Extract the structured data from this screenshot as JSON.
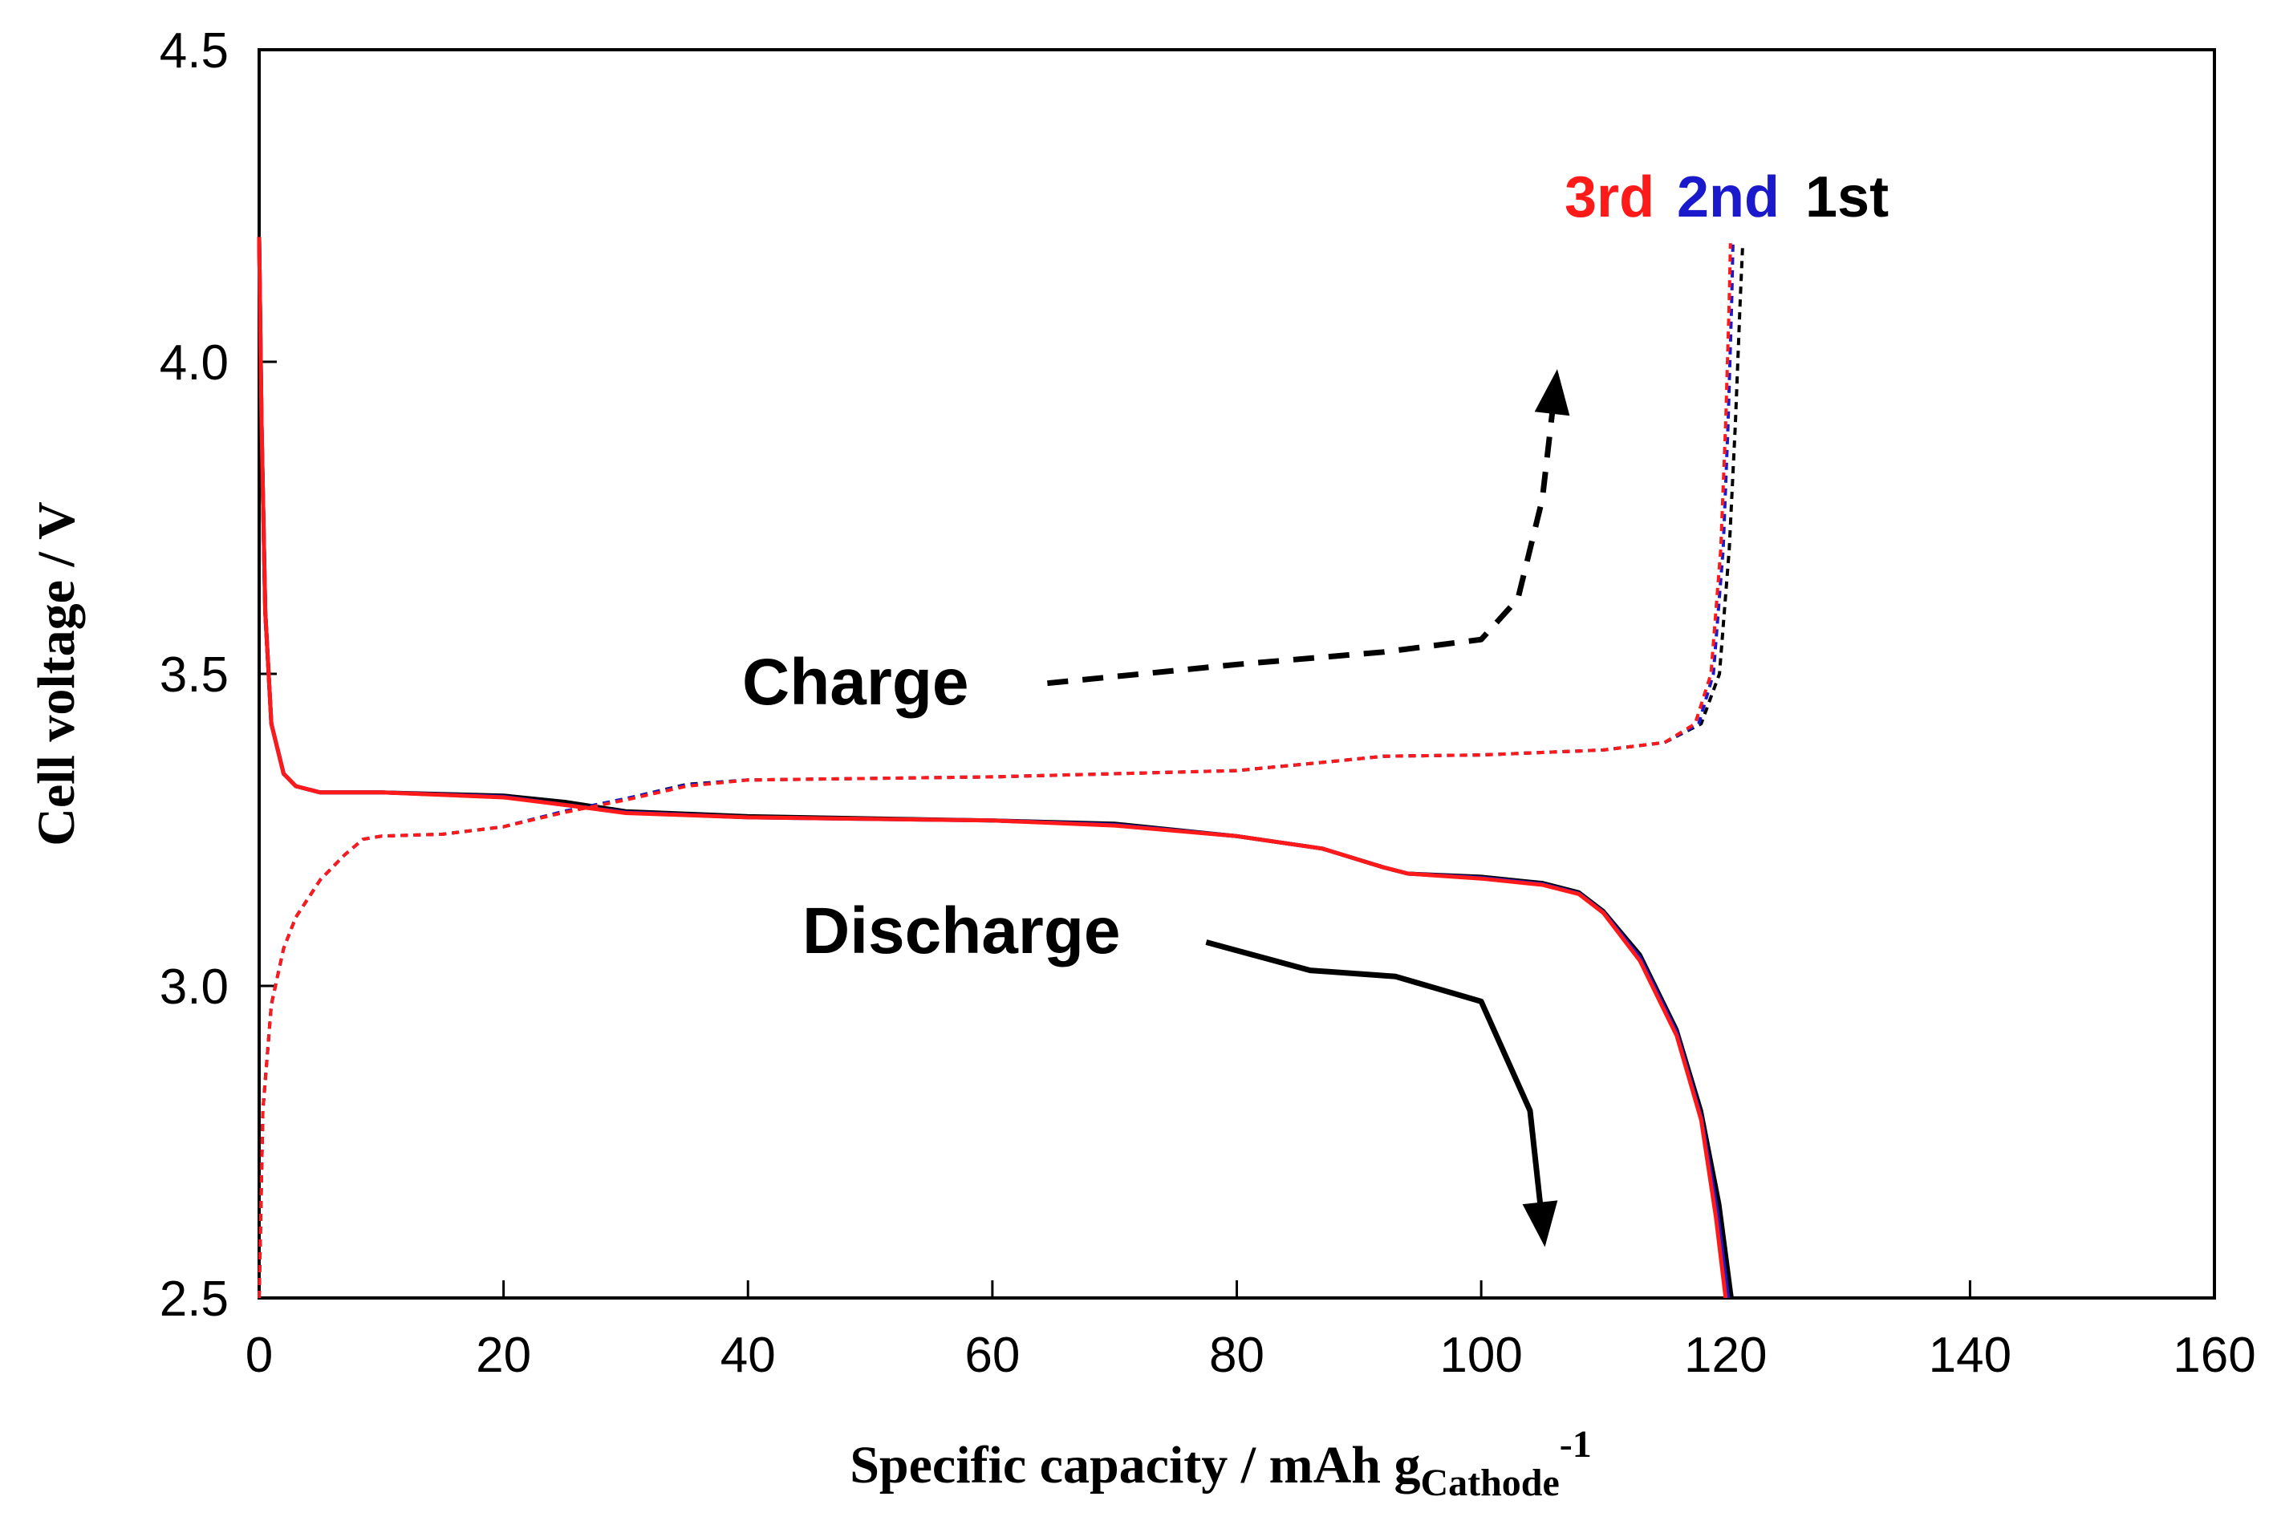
{
  "chart_data": {
    "type": "line",
    "title": "",
    "xlabel": "Specific capacity / mAh g",
    "xlabel_subscript": "Cathode",
    "xlabel_superscript": "-1",
    "ylabel": "Cell voltage / V",
    "xlim": [
      0,
      160
    ],
    "ylim": [
      2.5,
      4.5
    ],
    "x_ticks": [
      0,
      20,
      40,
      60,
      80,
      100,
      120,
      140,
      160
    ],
    "x_tick_labels": [
      "0",
      "20",
      "40",
      "60",
      "80",
      "100",
      "120",
      "140",
      "160"
    ],
    "y_ticks": [
      2.5,
      3.0,
      3.5,
      4.0,
      4.5
    ],
    "y_tick_labels": [
      "2.5",
      "3.0",
      "3.5",
      "4.0",
      "4.5"
    ],
    "grid": false,
    "series": [
      {
        "name": "1st",
        "color": "#000000",
        "charge": [
          [
            0,
            2.5
          ],
          [
            0.3,
            2.8
          ],
          [
            1,
            2.97
          ],
          [
            2,
            3.06
          ],
          [
            3,
            3.11
          ],
          [
            5,
            3.17
          ],
          [
            7,
            3.21
          ],
          [
            8.5,
            3.235
          ],
          [
            10,
            3.24
          ],
          [
            15,
            3.243
          ],
          [
            20,
            3.255
          ],
          [
            25,
            3.28
          ],
          [
            30,
            3.3
          ],
          [
            35,
            3.323
          ],
          [
            40,
            3.33
          ],
          [
            60,
            3.335
          ],
          [
            80,
            3.345
          ],
          [
            88,
            3.36
          ],
          [
            92,
            3.368
          ],
          [
            100,
            3.37
          ],
          [
            110,
            3.378
          ],
          [
            115,
            3.39
          ],
          [
            118,
            3.42
          ],
          [
            119.5,
            3.5
          ],
          [
            120.3,
            3.7
          ],
          [
            120.8,
            3.9
          ],
          [
            121.2,
            4.1
          ],
          [
            121.4,
            4.19
          ]
        ],
        "discharge": [
          [
            0,
            4.2
          ],
          [
            0.2,
            3.9
          ],
          [
            0.5,
            3.6
          ],
          [
            1,
            3.42
          ],
          [
            2,
            3.34
          ],
          [
            3,
            3.32
          ],
          [
            5,
            3.31
          ],
          [
            10,
            3.31
          ],
          [
            20,
            3.305
          ],
          [
            25,
            3.295
          ],
          [
            30,
            3.28
          ],
          [
            40,
            3.272
          ],
          [
            60,
            3.265
          ],
          [
            70,
            3.26
          ],
          [
            80,
            3.24
          ],
          [
            87,
            3.22
          ],
          [
            92,
            3.19
          ],
          [
            94,
            3.18
          ],
          [
            100,
            3.175
          ],
          [
            105,
            3.165
          ],
          [
            108,
            3.15
          ],
          [
            110,
            3.12
          ],
          [
            113,
            3.05
          ],
          [
            116,
            2.93
          ],
          [
            118,
            2.8
          ],
          [
            119.5,
            2.65
          ],
          [
            120.5,
            2.5
          ]
        ]
      },
      {
        "name": "2nd",
        "color": "#1a1acc",
        "charge": [
          [
            0,
            2.5
          ],
          [
            0.3,
            2.8
          ],
          [
            1,
            2.97
          ],
          [
            2,
            3.06
          ],
          [
            3,
            3.11
          ],
          [
            5,
            3.17
          ],
          [
            7,
            3.21
          ],
          [
            8.5,
            3.235
          ],
          [
            10,
            3.24
          ],
          [
            15,
            3.243
          ],
          [
            20,
            3.255
          ],
          [
            25,
            3.28
          ],
          [
            30,
            3.3
          ],
          [
            35,
            3.322
          ],
          [
            40,
            3.33
          ],
          [
            60,
            3.335
          ],
          [
            80,
            3.345
          ],
          [
            88,
            3.36
          ],
          [
            92,
            3.368
          ],
          [
            100,
            3.37
          ],
          [
            110,
            3.378
          ],
          [
            115,
            3.39
          ],
          [
            117.8,
            3.42
          ],
          [
            119,
            3.5
          ],
          [
            119.8,
            3.7
          ],
          [
            120.2,
            3.9
          ],
          [
            120.5,
            4.1
          ],
          [
            120.6,
            4.19
          ]
        ],
        "discharge": [
          [
            0,
            4.2
          ],
          [
            0.2,
            3.9
          ],
          [
            0.5,
            3.6
          ],
          [
            1,
            3.42
          ],
          [
            2,
            3.34
          ],
          [
            3,
            3.32
          ],
          [
            5,
            3.31
          ],
          [
            10,
            3.31
          ],
          [
            20,
            3.303
          ],
          [
            25,
            3.29
          ],
          [
            30,
            3.278
          ],
          [
            40,
            3.27
          ],
          [
            60,
            3.265
          ],
          [
            70,
            3.258
          ],
          [
            80,
            3.24
          ],
          [
            87,
            3.22
          ],
          [
            92,
            3.19
          ],
          [
            94,
            3.18
          ],
          [
            100,
            3.173
          ],
          [
            105,
            3.163
          ],
          [
            108,
            3.148
          ],
          [
            110,
            3.118
          ],
          [
            113,
            3.045
          ],
          [
            116,
            2.925
          ],
          [
            118,
            2.79
          ],
          [
            119.3,
            2.64
          ],
          [
            120.2,
            2.5
          ]
        ]
      },
      {
        "name": "3rd",
        "color": "#ff1a1a",
        "charge": [
          [
            0,
            2.5
          ],
          [
            0.3,
            2.8
          ],
          [
            1,
            2.97
          ],
          [
            2,
            3.06
          ],
          [
            3,
            3.11
          ],
          [
            5,
            3.17
          ],
          [
            7,
            3.21
          ],
          [
            8.5,
            3.235
          ],
          [
            10,
            3.24
          ],
          [
            15,
            3.243
          ],
          [
            20,
            3.255
          ],
          [
            25,
            3.278
          ],
          [
            30,
            3.298
          ],
          [
            35,
            3.32
          ],
          [
            40,
            3.33
          ],
          [
            60,
            3.335
          ],
          [
            80,
            3.345
          ],
          [
            88,
            3.36
          ],
          [
            92,
            3.368
          ],
          [
            100,
            3.37
          ],
          [
            110,
            3.378
          ],
          [
            115,
            3.39
          ],
          [
            117.5,
            3.42
          ],
          [
            118.8,
            3.5
          ],
          [
            119.6,
            3.7
          ],
          [
            120,
            3.9
          ],
          [
            120.3,
            4.1
          ],
          [
            120.4,
            4.19
          ]
        ],
        "discharge": [
          [
            0,
            4.2
          ],
          [
            0.2,
            3.9
          ],
          [
            0.5,
            3.6
          ],
          [
            1,
            3.42
          ],
          [
            2,
            3.34
          ],
          [
            3,
            3.32
          ],
          [
            5,
            3.31
          ],
          [
            10,
            3.31
          ],
          [
            20,
            3.302
          ],
          [
            25,
            3.29
          ],
          [
            30,
            3.277
          ],
          [
            40,
            3.27
          ],
          [
            60,
            3.265
          ],
          [
            70,
            3.257
          ],
          [
            80,
            3.24
          ],
          [
            87,
            3.22
          ],
          [
            92,
            3.19
          ],
          [
            94,
            3.18
          ],
          [
            100,
            3.172
          ],
          [
            105,
            3.162
          ],
          [
            108,
            3.147
          ],
          [
            110,
            3.117
          ],
          [
            113,
            3.04
          ],
          [
            116,
            2.92
          ],
          [
            118,
            2.785
          ],
          [
            119.2,
            2.63
          ],
          [
            120,
            2.5
          ]
        ]
      }
    ],
    "cycle_labels": [
      {
        "text": "3rd",
        "color": "#ff1a1a"
      },
      {
        "text": "2nd",
        "color": "#1a1acc"
      },
      {
        "text": "1st",
        "color": "#000000"
      }
    ],
    "annotations": [
      {
        "text": "Charge",
        "arrow": "dashed",
        "arrow_path": [
          [
            64.5,
            3.485
          ],
          [
            80,
            3.515
          ],
          [
            92,
            3.535
          ],
          [
            100,
            3.555
          ],
          [
            103,
            3.62
          ],
          [
            105,
            3.78
          ],
          [
            106,
            3.95
          ]
        ]
      },
      {
        "text": "Discharge",
        "arrow": "solid",
        "arrow_path": [
          [
            77.5,
            3.07
          ],
          [
            86,
            3.025
          ],
          [
            93,
            3.015
          ],
          [
            100,
            2.975
          ],
          [
            104,
            2.8
          ],
          [
            105,
            2.62
          ]
        ]
      }
    ]
  }
}
